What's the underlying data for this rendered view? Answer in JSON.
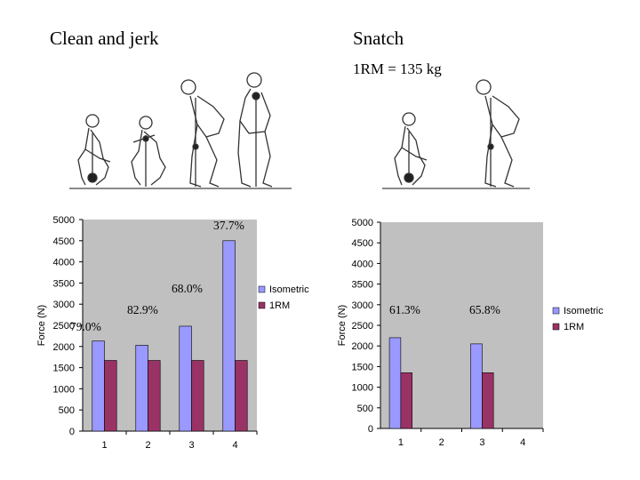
{
  "headings": {
    "left": "Clean and jerk",
    "right": "Snatch",
    "right_sub": "1RM = 135 kg"
  },
  "figures": {
    "left": [
      "lifter-start-position",
      "lifter-catch-position",
      "lifter-second-pull",
      "lifter-front-rack-dip"
    ],
    "right": [
      "lifter-start-position",
      "lifter-second-pull"
    ]
  },
  "colors": {
    "isometric": "#9999ff",
    "onerm": "#993366",
    "plot_bg": "#c0c0c0"
  },
  "chart_data": [
    {
      "type": "bar",
      "title": "Clean and jerk",
      "categories": [
        "1",
        "2",
        "3",
        "4"
      ],
      "ylabel": "Force (N)",
      "xlabel": "",
      "ylim": [
        0,
        5000
      ],
      "yticks": [
        "0",
        "500",
        "1000",
        "1500",
        "2000",
        "2500",
        "3000",
        "3500",
        "4000",
        "4500",
        "5000"
      ],
      "series": [
        {
          "name": "Isometric",
          "values": [
            2130,
            2030,
            2480,
            4500
          ]
        },
        {
          "name": "1RM",
          "values": [
            1670,
            1670,
            1670,
            1670
          ]
        }
      ],
      "annotations": [
        "79.0%",
        "82.9%",
        "68.0%",
        "37.7%"
      ],
      "legend": [
        "Isometric",
        "1RM"
      ]
    },
    {
      "type": "bar",
      "title": "Snatch",
      "categories": [
        "1",
        "2",
        "3",
        "4"
      ],
      "ylabel": "Force (N)",
      "xlabel": "",
      "ylim": [
        0,
        5000
      ],
      "yticks": [
        "0",
        "500",
        "1000",
        "1500",
        "2000",
        "2500",
        "3000",
        "3500",
        "4000",
        "4500",
        "5000"
      ],
      "series": [
        {
          "name": "Isometric",
          "values": [
            2200,
            null,
            2050,
            null
          ]
        },
        {
          "name": "1RM",
          "values": [
            1350,
            null,
            1350,
            null
          ]
        }
      ],
      "annotations": [
        "61.3%",
        null,
        "65.8%",
        null
      ],
      "legend": [
        "Isometric",
        "1RM"
      ]
    }
  ]
}
